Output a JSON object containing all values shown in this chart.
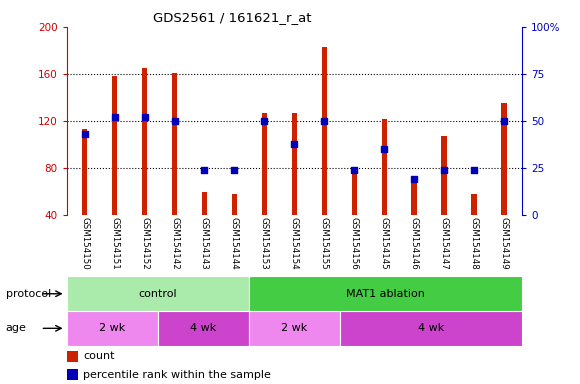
{
  "title": "GDS2561 / 161621_r_at",
  "samples": [
    "GSM154150",
    "GSM154151",
    "GSM154152",
    "GSM154142",
    "GSM154143",
    "GSM154144",
    "GSM154153",
    "GSM154154",
    "GSM154155",
    "GSM154156",
    "GSM154145",
    "GSM154146",
    "GSM154147",
    "GSM154148",
    "GSM154149"
  ],
  "red_values": [
    113,
    158,
    165,
    161,
    60,
    58,
    127,
    127,
    183,
    76,
    122,
    70,
    107,
    58,
    135
  ],
  "blue_values_pct": [
    43,
    52,
    52,
    50,
    24,
    24,
    50,
    38,
    50,
    24,
    35,
    19,
    24,
    24,
    50
  ],
  "ylim_left": [
    40,
    200
  ],
  "ylim_right": [
    0,
    100
  ],
  "yticks_left": [
    40,
    80,
    120,
    160,
    200
  ],
  "yticks_right": [
    0,
    25,
    50,
    75,
    100
  ],
  "left_color": "#cc0000",
  "right_color": "#0000bb",
  "bar_color": "#cc2200",
  "dot_color": "#0000bb",
  "bg_xlab": "#c8c8c8",
  "protocol_groups": [
    {
      "label": "control",
      "start": 0,
      "end": 6,
      "color": "#aaeaaa"
    },
    {
      "label": "MAT1 ablation",
      "start": 6,
      "end": 15,
      "color": "#44cc44"
    }
  ],
  "age_groups": [
    {
      "label": "2 wk",
      "start": 0,
      "end": 3,
      "color": "#ee88ee"
    },
    {
      "label": "4 wk",
      "start": 3,
      "end": 6,
      "color": "#cc44cc"
    },
    {
      "label": "2 wk",
      "start": 6,
      "end": 9,
      "color": "#ee88ee"
    },
    {
      "label": "4 wk",
      "start": 9,
      "end": 15,
      "color": "#cc44cc"
    }
  ],
  "protocol_label": "protocol",
  "age_label": "age",
  "legend_count": "count",
  "legend_pct": "percentile rank within the sample",
  "bar_width": 0.18
}
